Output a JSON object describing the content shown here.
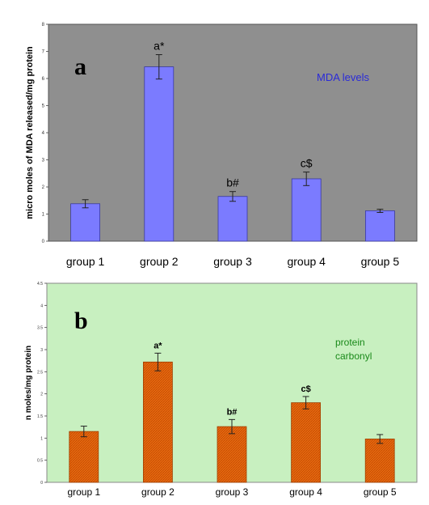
{
  "chart_data": [
    {
      "type": "bar",
      "panel_letter": "a",
      "legend_text": "MDA levels",
      "ylabel": "micro moles of MDA released/mg protein",
      "categories": [
        "group 1",
        "group 2",
        "group 3",
        "group 4",
        "group 5"
      ],
      "values": [
        1.38,
        6.43,
        1.65,
        2.3,
        1.12
      ],
      "errors": [
        0.15,
        0.45,
        0.18,
        0.25,
        0.06
      ],
      "annotations": [
        "",
        "a*",
        "b#",
        "c$",
        ""
      ],
      "ylim": [
        0,
        8
      ],
      "yticks": [
        "0",
        "1",
        "2",
        "3",
        "4",
        "5",
        "6",
        "7",
        "8"
      ],
      "plot_bg": "#8f8f8f",
      "bar_color": "#7b7bff",
      "legend_color": "#2a2ad8"
    },
    {
      "type": "bar",
      "panel_letter": "b",
      "legend_text": [
        "protein",
        "carbonyl"
      ],
      "ylabel": "n moles/mg protein",
      "categories": [
        "group 1",
        "group 2",
        "group 3",
        "group 4",
        "group 5"
      ],
      "values": [
        1.15,
        2.72,
        1.26,
        1.8,
        0.98
      ],
      "errors": [
        0.12,
        0.2,
        0.16,
        0.14,
        0.1
      ],
      "annotations": [
        "",
        "a*",
        "b#",
        "c$",
        ""
      ],
      "ylim": [
        0,
        4.5
      ],
      "yticks": [
        "0",
        "0.5",
        "1",
        "1.5",
        "2",
        "2.5",
        "3",
        "3.5",
        "4",
        "4.5"
      ],
      "plot_bg": "#c8f0c0",
      "bar_color": "#e86a10",
      "legend_color": "#1a8a1a"
    }
  ]
}
